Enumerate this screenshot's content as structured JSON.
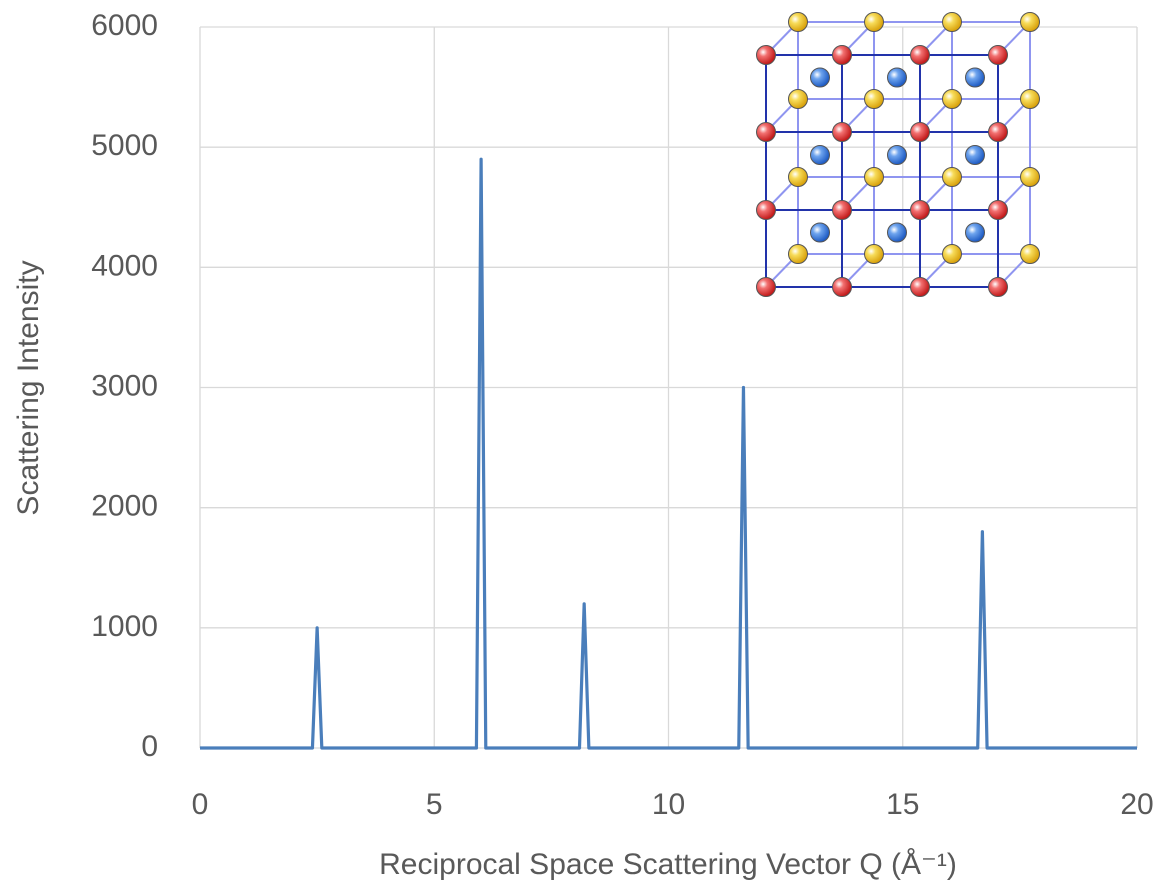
{
  "chart_data": {
    "type": "line",
    "xlabel": "Reciprocal Space Scattering Vector Q (Å⁻¹)",
    "ylabel": "Scattering Intensity",
    "x": [
      0,
      2.4,
      2.5,
      2.6,
      5.9,
      6.0,
      6.1,
      8.1,
      8.2,
      8.3,
      11.5,
      11.6,
      11.7,
      16.6,
      16.7,
      16.8,
      20
    ],
    "values": [
      0,
      0,
      1000,
      0,
      0,
      4900,
      0,
      0,
      1200,
      0,
      0,
      3000,
      0,
      0,
      1800,
      0,
      0
    ],
    "color": "#4a7ebb",
    "xlim": [
      0,
      20
    ],
    "xticks": [
      0,
      5,
      10,
      15,
      20
    ],
    "ylim": [
      0,
      6000
    ],
    "yticks": [
      0,
      1000,
      2000,
      3000,
      4000,
      5000,
      6000
    ],
    "grid": true
  }
}
